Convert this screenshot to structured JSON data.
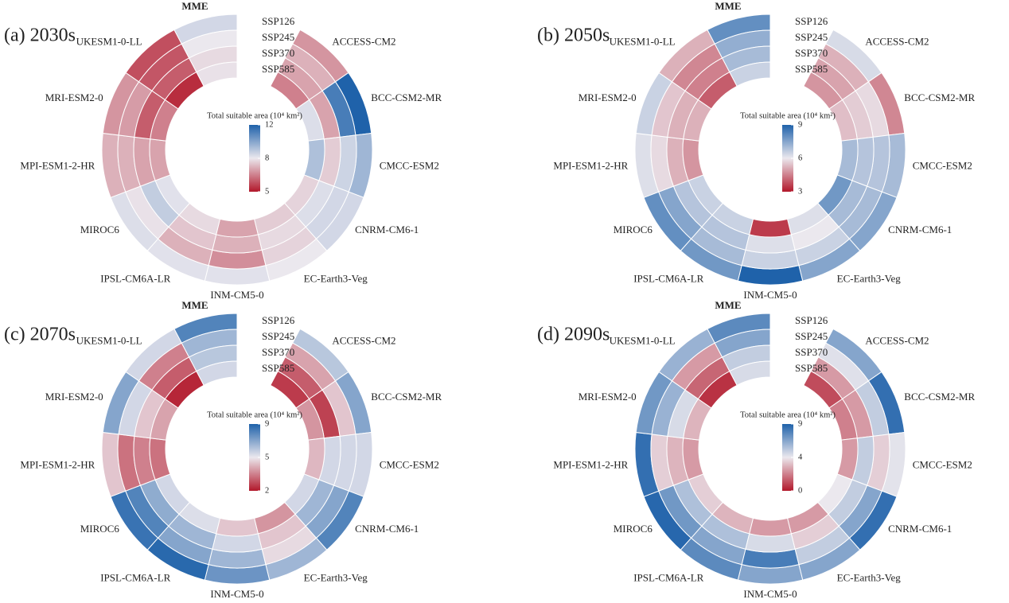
{
  "chart_data": [
    {
      "type": "radial-heatmap",
      "title": "(a) 2030s",
      "colorbar_label": "Total suitable area (10⁴ km²)",
      "categories": [
        "ACCESS-CM2",
        "BCC-CSM2-MR",
        "CMCC-ESM2",
        "CNRM-CM6-1",
        "EC-Earth3-Veg",
        "INM-CM5-0",
        "IPSL-CM6A-LR",
        "MIROC6",
        "MPI-ESM1-2-HR",
        "MRI-ESM2-0",
        "UKESM1-0-LL",
        "MME"
      ],
      "series": [
        {
          "name": "SSP126",
          "values": [
            6.8,
            12,
            9.5,
            8.5,
            8.0,
            8.2,
            8.2,
            8.3,
            7.2,
            6.8,
            5.8,
            8.5
          ]
        },
        {
          "name": "SSP245",
          "values": [
            7.2,
            11.2,
            8.6,
            8.5,
            7.7,
            6.7,
            7.2,
            7.9,
            7.2,
            6.9,
            5.9,
            8.0
          ]
        },
        {
          "name": "SSP370",
          "values": [
            7.0,
            7.0,
            7.6,
            8.3,
            7.8,
            7.2,
            7.5,
            8.8,
            7.0,
            6.0,
            6.0,
            7.8
          ]
        },
        {
          "name": "SSP585",
          "values": [
            6.5,
            8.3,
            9.2,
            7.7,
            7.6,
            7.0,
            7.8,
            8.2,
            7.0,
            6.5,
            5.3,
            7.9
          ]
        }
      ],
      "clim": [
        5,
        12
      ],
      "cticks": [
        5,
        8,
        12
      ],
      "colormap": [
        "#b2182b",
        "#ebe8ee",
        "#1f62aa"
      ]
    },
    {
      "type": "radial-heatmap",
      "title": "(b) 2050s",
      "colorbar_label": "Total suitable area (10⁴ km²)",
      "categories": [
        "ACCESS-CM2",
        "BCC-CSM2-MR",
        "CMCC-ESM2",
        "CNRM-CM6-1",
        "EC-Earth3-Veg",
        "INM-CM5-0",
        "IPSL-CM6A-LR",
        "MIROC6",
        "MPI-ESM1-2-HR",
        "MRI-ESM2-0",
        "UKESM1-0-LL",
        "MME"
      ],
      "series": [
        {
          "name": "SSP126",
          "values": [
            6.3,
            4.6,
            7.0,
            7.5,
            7.5,
            9.0,
            7.8,
            8.0,
            6.2,
            6.5,
            5.2,
            8.0
          ]
        },
        {
          "name": "SSP245",
          "values": [
            5.2,
            5.8,
            6.8,
            7.0,
            6.5,
            6.5,
            7.0,
            7.5,
            5.8,
            5.5,
            4.6,
            7.3
          ]
        },
        {
          "name": "SSP370",
          "values": [
            5.0,
            5.6,
            6.8,
            7.0,
            6.0,
            6.2,
            6.8,
            6.8,
            5.2,
            5.2,
            4.5,
            7.0
          ]
        },
        {
          "name": "SSP585",
          "values": [
            4.8,
            5.4,
            7.0,
            7.8,
            6.2,
            3.5,
            6.5,
            6.5,
            4.8,
            5.2,
            4.0,
            6.5
          ]
        }
      ],
      "clim": [
        3,
        9
      ],
      "cticks": [
        3,
        6,
        9
      ],
      "colormap": [
        "#b2182b",
        "#ebe8ee",
        "#1f62aa"
      ]
    },
    {
      "type": "radial-heatmap",
      "title": "(c) 2070s",
      "colorbar_label": "Total suitable area (10⁴ km²)",
      "categories": [
        "ACCESS-CM2",
        "BCC-CSM2-MR",
        "CMCC-ESM2",
        "CNRM-CM6-1",
        "EC-Earth3-Veg",
        "INM-CM5-0",
        "IPSL-CM6A-LR",
        "MIROC6",
        "MPI-ESM1-2-HR",
        "MRI-ESM2-0",
        "UKESM1-0-LL",
        "MME"
      ],
      "series": [
        {
          "name": "SSP126",
          "values": [
            6.0,
            7.0,
            5.5,
            8.0,
            6.5,
            7.5,
            8.8,
            8.5,
            4.5,
            7.0,
            5.5,
            8.0
          ]
        },
        {
          "name": "SSP245",
          "values": [
            4.0,
            4.5,
            5.5,
            7.0,
            4.8,
            6.5,
            7.0,
            8.0,
            3.3,
            5.5,
            3.5,
            6.5
          ]
        },
        {
          "name": "SSP370",
          "values": [
            3.0,
            2.6,
            5.5,
            6.5,
            4.5,
            5.5,
            6.5,
            6.8,
            3.5,
            4.5,
            3.0,
            6.0
          ]
        },
        {
          "name": "SSP585",
          "values": [
            2.5,
            3.8,
            4.3,
            5.5,
            3.8,
            4.5,
            5.3,
            5.5,
            3.3,
            4.0,
            2.2,
            5.5
          ]
        }
      ],
      "clim": [
        2,
        9
      ],
      "cticks": [
        2,
        5,
        9
      ],
      "colormap": [
        "#b2182b",
        "#ebe8ee",
        "#1f62aa"
      ]
    },
    {
      "type": "radial-heatmap",
      "title": "(d) 2090s",
      "colorbar_label": "Total suitable area (10⁴ km²)",
      "categories": [
        "ACCESS-CM2",
        "BCC-CSM2-MR",
        "CMCC-ESM2",
        "CNRM-CM6-1",
        "EC-Earth3-Veg",
        "INM-CM5-0",
        "IPSL-CM6A-LR",
        "MIROC6",
        "MPI-ESM1-2-HR",
        "MRI-ESM2-0",
        "UKESM1-0-LL",
        "MME"
      ],
      "series": [
        {
          "name": "SSP126",
          "values": [
            6.5,
            8.5,
            4.2,
            8.5,
            6.5,
            6.5,
            7.5,
            8.8,
            8.5,
            7.0,
            6.0,
            7.5
          ]
        },
        {
          "name": "SSP245",
          "values": [
            4.3,
            5.0,
            3.5,
            6.5,
            5.0,
            8.0,
            6.5,
            7.0,
            3.5,
            6.0,
            2.5,
            6.5
          ]
        },
        {
          "name": "SSP370",
          "values": [
            2.5,
            2.5,
            5.0,
            5.0,
            3.5,
            4.5,
            5.5,
            5.5,
            3.0,
            4.5,
            1.5,
            5.0
          ]
        },
        {
          "name": "SSP585",
          "values": [
            1.0,
            2.0,
            2.5,
            4.0,
            2.5,
            2.5,
            3.0,
            3.5,
            2.5,
            3.0,
            0.5,
            4.5
          ]
        }
      ],
      "clim": [
        0,
        9
      ],
      "cticks": [
        0,
        4,
        9
      ],
      "colormap": [
        "#b2182b",
        "#ebe8ee",
        "#1f62aa"
      ]
    }
  ]
}
